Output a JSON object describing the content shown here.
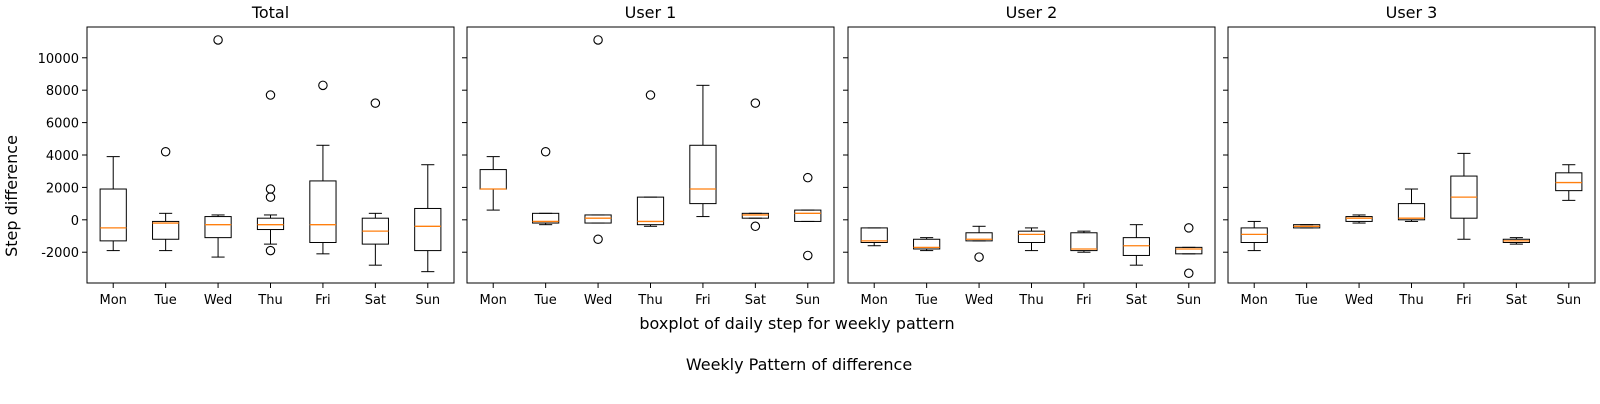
{
  "figure": {
    "ylabel": "Step difference",
    "xlabel": "boxplot of daily step for weekly pattern",
    "caption": "Weekly Pattern of difference"
  },
  "colors": {
    "box": "#000000",
    "median": "#ff7f0e",
    "background": "#ffffff"
  },
  "chart_data": [
    {
      "type": "boxplot",
      "title": "Total",
      "categories": [
        "Mon",
        "Tue",
        "Wed",
        "Thu",
        "Fri",
        "Sat",
        "Sun"
      ],
      "ylim": [
        -3900,
        11900
      ],
      "yticks": [
        -2000,
        0,
        2000,
        4000,
        6000,
        8000,
        10000
      ],
      "boxes": [
        {
          "whislo": -1900,
          "q1": -1300,
          "med": -500,
          "q3": 1900,
          "whishi": 3900,
          "fliers": []
        },
        {
          "whislo": -1900,
          "q1": -1200,
          "med": -200,
          "q3": -100,
          "whishi": 400,
          "fliers": [
            4200
          ]
        },
        {
          "whislo": -2300,
          "q1": -1100,
          "med": -300,
          "q3": 200,
          "whishi": 300,
          "fliers": [
            11100
          ]
        },
        {
          "whislo": -1500,
          "q1": -600,
          "med": -300,
          "q3": 100,
          "whishi": 300,
          "fliers": [
            -1900,
            1400,
            1900,
            7700
          ]
        },
        {
          "whislo": -2100,
          "q1": -1400,
          "med": -300,
          "q3": 2400,
          "whishi": 4600,
          "fliers": [
            8300
          ]
        },
        {
          "whislo": -2800,
          "q1": -1500,
          "med": -700,
          "q3": 100,
          "whishi": 400,
          "fliers": [
            7200
          ]
        },
        {
          "whislo": -3200,
          "q1": -1900,
          "med": -400,
          "q3": 700,
          "whishi": 3400,
          "fliers": []
        }
      ]
    },
    {
      "type": "boxplot",
      "title": "User 1",
      "categories": [
        "Mon",
        "Tue",
        "Wed",
        "Thu",
        "Fri",
        "Sat",
        "Sun"
      ],
      "ylim": [
        -3900,
        11900
      ],
      "yticks": [
        -2000,
        0,
        2000,
        4000,
        6000,
        8000,
        10000
      ],
      "boxes": [
        {
          "whislo": 600,
          "q1": 1900,
          "med": 1900,
          "q3": 3100,
          "whishi": 3900,
          "fliers": []
        },
        {
          "whislo": -300,
          "q1": -200,
          "med": -100,
          "q3": 400,
          "whishi": 400,
          "fliers": [
            4200
          ]
        },
        {
          "whislo": -200,
          "q1": -200,
          "med": 100,
          "q3": 300,
          "whishi": 300,
          "fliers": [
            -1200,
            11100
          ]
        },
        {
          "whislo": -400,
          "q1": -300,
          "med": -100,
          "q3": 1400,
          "whishi": 1400,
          "fliers": [
            7700
          ]
        },
        {
          "whislo": 200,
          "q1": 1000,
          "med": 1900,
          "q3": 4600,
          "whishi": 8300,
          "fliers": []
        },
        {
          "whislo": 100,
          "q1": 100,
          "med": 300,
          "q3": 400,
          "whishi": 400,
          "fliers": [
            -400,
            7200
          ]
        },
        {
          "whislo": -100,
          "q1": -100,
          "med": 400,
          "q3": 600,
          "whishi": 600,
          "fliers": [
            -2200,
            2600
          ]
        }
      ]
    },
    {
      "type": "boxplot",
      "title": "User 2",
      "categories": [
        "Mon",
        "Tue",
        "Wed",
        "Thu",
        "Fri",
        "Sat",
        "Sun"
      ],
      "ylim": [
        -3900,
        11900
      ],
      "yticks": [
        -2000,
        0,
        2000,
        4000,
        6000,
        8000,
        10000
      ],
      "boxes": [
        {
          "whislo": -1600,
          "q1": -1400,
          "med": -1300,
          "q3": -500,
          "whishi": -500,
          "fliers": []
        },
        {
          "whislo": -1900,
          "q1": -1800,
          "med": -1700,
          "q3": -1200,
          "whishi": -1100,
          "fliers": []
        },
        {
          "whislo": -1300,
          "q1": -1300,
          "med": -1200,
          "q3": -800,
          "whishi": -400,
          "fliers": [
            -2300
          ]
        },
        {
          "whislo": -1900,
          "q1": -1400,
          "med": -900,
          "q3": -700,
          "whishi": -500,
          "fliers": []
        },
        {
          "whislo": -2000,
          "q1": -1900,
          "med": -1800,
          "q3": -800,
          "whishi": -700,
          "fliers": []
        },
        {
          "whislo": -2800,
          "q1": -2200,
          "med": -1600,
          "q3": -1100,
          "whishi": -300,
          "fliers": []
        },
        {
          "whislo": -2100,
          "q1": -2100,
          "med": -1800,
          "q3": -1700,
          "whishi": -1700,
          "fliers": [
            -500,
            -3300
          ]
        }
      ]
    },
    {
      "type": "boxplot",
      "title": "User 3",
      "categories": [
        "Mon",
        "Tue",
        "Wed",
        "Thu",
        "Fri",
        "Sat",
        "Sun"
      ],
      "ylim": [
        -3900,
        11900
      ],
      "yticks": [
        -2000,
        0,
        2000,
        4000,
        6000,
        8000,
        10000
      ],
      "boxes": [
        {
          "whislo": -1900,
          "q1": -1400,
          "med": -900,
          "q3": -500,
          "whishi": -100,
          "fliers": []
        },
        {
          "whislo": -500,
          "q1": -500,
          "med": -400,
          "q3": -300,
          "whishi": -300,
          "fliers": []
        },
        {
          "whislo": -200,
          "q1": -100,
          "med": 100,
          "q3": 200,
          "whishi": 300,
          "fliers": []
        },
        {
          "whislo": -100,
          "q1": 0,
          "med": 100,
          "q3": 1000,
          "whishi": 1900,
          "fliers": []
        },
        {
          "whislo": -1200,
          "q1": 100,
          "med": 1400,
          "q3": 2700,
          "whishi": 4100,
          "fliers": []
        },
        {
          "whislo": -1500,
          "q1": -1400,
          "med": -1300,
          "q3": -1200,
          "whishi": -1100,
          "fliers": []
        },
        {
          "whislo": 1200,
          "q1": 1800,
          "med": 2300,
          "q3": 2900,
          "whishi": 3400,
          "fliers": []
        }
      ]
    }
  ]
}
